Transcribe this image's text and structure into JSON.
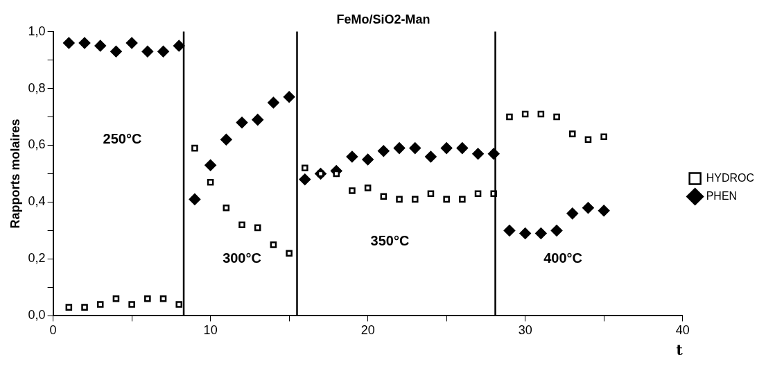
{
  "chart_data": {
    "type": "scatter",
    "title": "FeMo/SiO2-Man",
    "xlabel": "t",
    "ylabel": "Rapports molaires",
    "x": [
      1,
      2,
      3,
      4,
      5,
      6,
      7,
      8,
      9,
      10,
      11,
      12,
      13,
      14,
      15,
      16,
      17,
      18,
      19,
      20,
      21,
      22,
      23,
      24,
      25,
      26,
      27,
      28,
      29,
      30,
      31,
      32,
      33,
      34,
      35
    ],
    "series": [
      {
        "name": "HYDROC",
        "color": "#000000",
        "marker": "square",
        "values": [
          0.03,
          0.03,
          0.04,
          0.06,
          0.04,
          0.06,
          0.06,
          0.04,
          0.59,
          0.47,
          0.38,
          0.32,
          0.31,
          0.25,
          0.22,
          0.52,
          0.5,
          0.5,
          0.44,
          0.45,
          0.42,
          0.41,
          0.41,
          0.43,
          0.41,
          0.41,
          0.43,
          0.43,
          0.7,
          0.71,
          0.71,
          0.7,
          0.64,
          0.62,
          0.63
        ]
      },
      {
        "name": "PHEN",
        "color": "#000000",
        "marker": "diamond",
        "values": [
          0.96,
          0.96,
          0.95,
          0.93,
          0.96,
          0.93,
          0.93,
          0.95,
          0.41,
          0.53,
          0.62,
          0.68,
          0.69,
          0.75,
          0.77,
          0.48,
          0.5,
          0.51,
          0.56,
          0.55,
          0.58,
          0.59,
          0.59,
          0.56,
          0.59,
          0.59,
          0.57,
          0.57,
          0.3,
          0.29,
          0.29,
          0.3,
          0.36,
          0.38,
          0.37
        ]
      }
    ],
    "xlim": [
      0,
      40
    ],
    "xticks": [
      0,
      {
        "value": 5,
        "label": null
      },
      10,
      {
        "value": 15,
        "label": null
      },
      20,
      {
        "value": 25,
        "label": null
      },
      30,
      {
        "value": 35,
        "label": null
      },
      40
    ],
    "ylim": [
      0,
      1
    ],
    "yticks": [
      {
        "value": 0,
        "label": "0,0"
      },
      {
        "value": 0.1,
        "label": null
      },
      {
        "value": 0.2,
        "label": "0,2"
      },
      {
        "value": 0.3,
        "label": null
      },
      {
        "value": 0.4,
        "label": "0,4"
      },
      {
        "value": 0.5,
        "label": null
      },
      {
        "value": 0.6,
        "label": "0,6"
      },
      {
        "value": 0.7,
        "label": null
      },
      {
        "value": 0.8,
        "label": "0,8"
      },
      {
        "value": 0.9,
        "label": null
      },
      {
        "value": 1,
        "label": "1,0"
      }
    ],
    "ref_lines": [
      {
        "axis": "x",
        "value": 8.3,
        "color": "#000000"
      },
      {
        "axis": "x",
        "value": 15.5,
        "color": "#000000"
      },
      {
        "axis": "x",
        "value": 28.1,
        "color": "#000000"
      }
    ],
    "annotations": [
      "250°C",
      "300°C",
      "350°C",
      "400°C"
    ],
    "grid": false,
    "legend": "right"
  }
}
